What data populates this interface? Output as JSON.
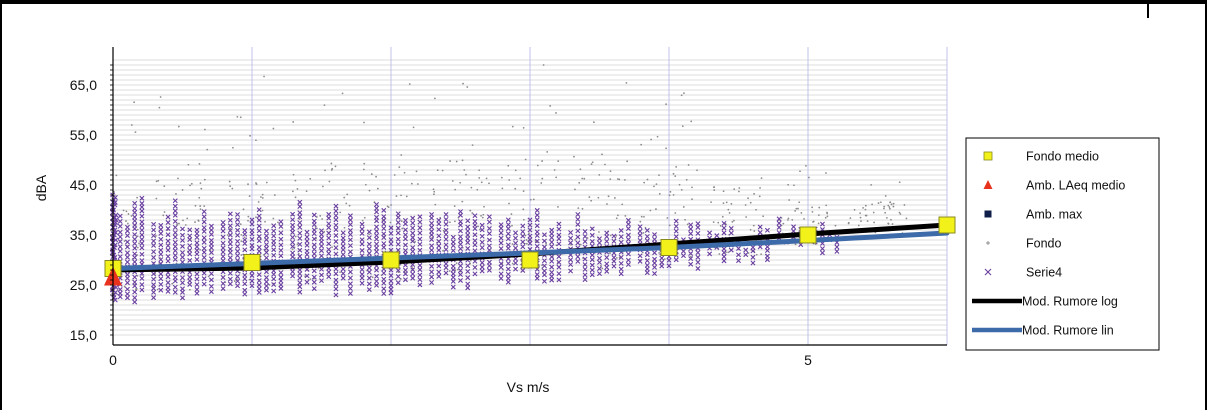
{
  "chart_data": {
    "type": "scatter",
    "title": "",
    "xlabel": "Vs m/s",
    "ylabel": "dBA",
    "xlim": [
      0,
      6
    ],
    "ylim": [
      15,
      70
    ],
    "x_ticks": [
      {
        "value": 0,
        "label": "0"
      },
      {
        "value": 5,
        "label": "5"
      }
    ],
    "y_ticks": [
      {
        "value": 15,
        "label": "15,0"
      },
      {
        "value": 25,
        "label": "25,0"
      },
      {
        "value": 35,
        "label": "35,0"
      },
      {
        "value": 45,
        "label": "45,0"
      },
      {
        "value": 55,
        "label": "55,0"
      },
      {
        "value": 65,
        "label": "65,0"
      }
    ],
    "grid": true,
    "legend_position": "right",
    "series": [
      {
        "name": "Fondo medio",
        "kind": "square",
        "color": "#f2f21a",
        "points": [
          [
            0,
            28.3
          ],
          [
            1,
            29.5
          ],
          [
            2,
            30.0
          ],
          [
            3,
            30.0
          ],
          [
            4,
            32.5
          ],
          [
            5,
            35.0
          ],
          [
            6,
            37.0
          ]
        ]
      },
      {
        "name": "Amb. LAeq medio",
        "kind": "triangle",
        "color": "#e8321e",
        "points": [
          [
            0,
            26.5
          ]
        ]
      },
      {
        "name": "Amb. max",
        "kind": "square-small",
        "color": "#0f1f4a",
        "points": []
      },
      {
        "name": "Fondo",
        "kind": "dot",
        "color": "#8c8c8c",
        "ranges": [
          [
            0,
            20,
            62
          ],
          [
            0.5,
            20,
            66
          ],
          [
            1,
            21,
            68
          ],
          [
            1.5,
            22,
            69
          ],
          [
            2,
            22,
            68
          ],
          [
            2.5,
            23,
            69
          ],
          [
            3,
            24,
            69
          ],
          [
            3.5,
            24,
            68
          ],
          [
            4,
            26,
            64
          ],
          [
            4.5,
            27,
            56
          ],
          [
            5,
            29,
            50
          ],
          [
            5.5,
            31,
            47
          ]
        ]
      },
      {
        "name": "Serie4",
        "kind": "x",
        "color": "#6a3fa0",
        "ranges": [
          [
            0,
            21,
            43
          ],
          [
            0.5,
            22,
            42
          ],
          [
            1,
            22,
            42
          ],
          [
            1.5,
            23,
            42
          ],
          [
            2,
            23,
            42
          ],
          [
            2.5,
            24,
            41
          ],
          [
            3,
            25,
            40
          ],
          [
            3.5,
            26,
            40
          ],
          [
            4,
            27,
            39
          ],
          [
            4.5,
            29,
            39
          ],
          [
            5,
            31,
            39
          ]
        ]
      },
      {
        "name": "Mod. Rumore log",
        "kind": "line",
        "color": "#000000",
        "points": [
          [
            0,
            28.0
          ],
          [
            1,
            28.4
          ],
          [
            2,
            29.6
          ],
          [
            3,
            31.2
          ],
          [
            4,
            33.2
          ],
          [
            5,
            35.2
          ],
          [
            6,
            37.0
          ]
        ]
      },
      {
        "name": "Mod. Rumore lin",
        "kind": "line",
        "color": "#3d6aa8",
        "points": [
          [
            0,
            28.3
          ],
          [
            1,
            29.3
          ],
          [
            2,
            30.4
          ],
          [
            3,
            31.4
          ],
          [
            4,
            32.5
          ],
          [
            5,
            33.9
          ],
          [
            6,
            35.4
          ]
        ]
      }
    ]
  }
}
